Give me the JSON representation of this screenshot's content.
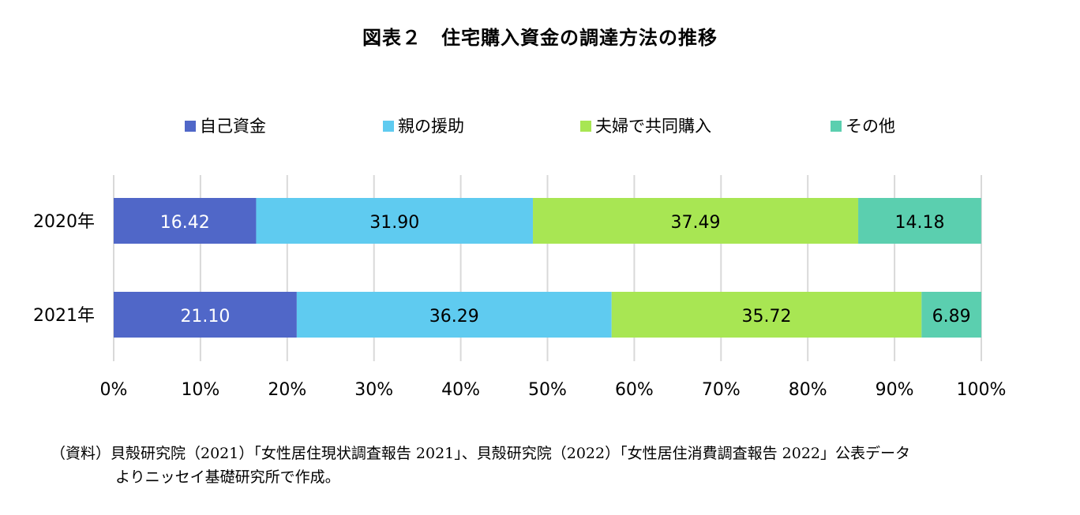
{
  "chart_data": {
    "type": "bar",
    "orientation": "horizontal",
    "stacked": "percent",
    "title": "図表２　住宅購入資金の調達方法の推移",
    "categories": [
      "2020年",
      "2021年"
    ],
    "series": [
      {
        "name": "自己資金",
        "color": "#5067C8",
        "values": [
          16.42,
          21.1
        ],
        "labels": [
          "16.42",
          "21.10"
        ]
      },
      {
        "name": "親の援助",
        "color": "#5FCBF0",
        "values": [
          31.9,
          36.29
        ],
        "labels": [
          "31.90",
          "36.29"
        ]
      },
      {
        "name": "夫婦で共同購入",
        "color": "#A8E653",
        "values": [
          37.49,
          35.72
        ],
        "labels": [
          "37.49",
          "35.72"
        ]
      },
      {
        "name": "その他",
        "color": "#5BCFAF",
        "values": [
          14.18,
          6.89
        ],
        "labels": [
          "14.18",
          "6.89"
        ]
      }
    ],
    "xlim": [
      0,
      100
    ],
    "xticks": [
      "0%",
      "10%",
      "20%",
      "30%",
      "40%",
      "50%",
      "60%",
      "70%",
      "80%",
      "90%",
      "100%"
    ],
    "grid": "vertical",
    "legend": "top"
  },
  "source_note": {
    "line1": "（資料）貝殻研究院（2021）「女性居住現状調査報告 2021」、貝殻研究院（2022）「女性居住消費調査報告 2022」公表データ",
    "line2": "よりニッセイ基礎研究所で作成。"
  }
}
